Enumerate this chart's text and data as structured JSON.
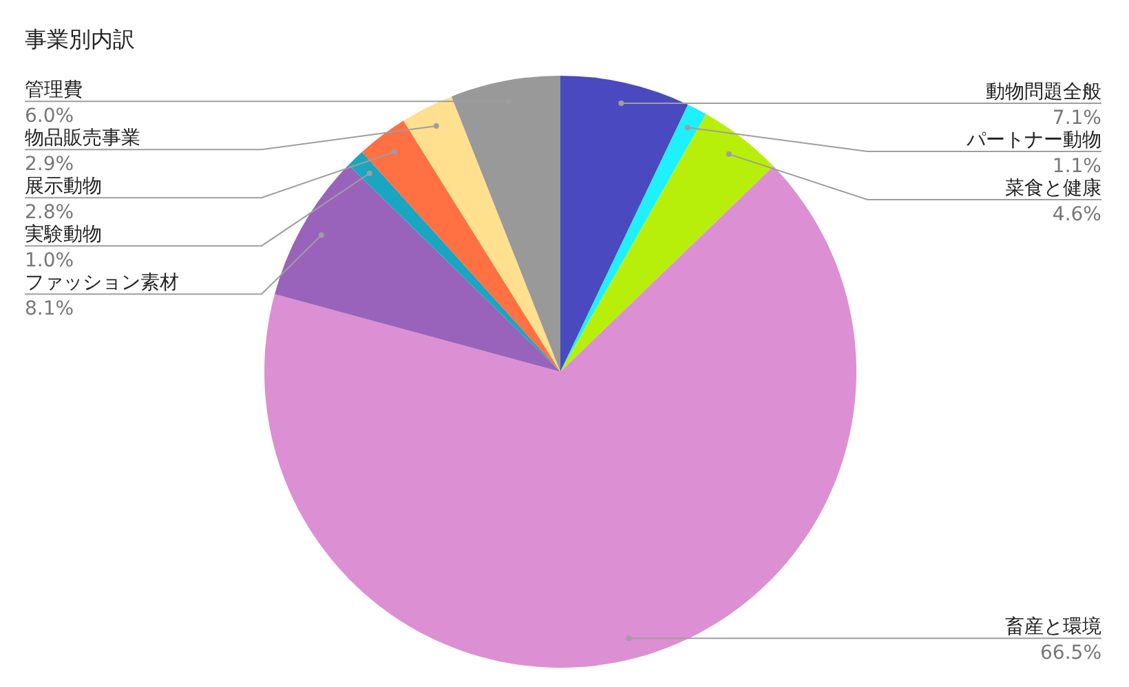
{
  "chart_data": {
    "type": "pie",
    "title": "事業別内訳",
    "categories": [
      "動物問題全般",
      "パートナー動物",
      "菜食と健康",
      "畜産と環境",
      "ファッション素材",
      "実験動物",
      "展示動物",
      "物品販売事業",
      "管理費"
    ],
    "values": [
      7.1,
      1.1,
      4.6,
      66.5,
      8.1,
      1.0,
      2.8,
      2.9,
      6.0
    ],
    "value_labels": [
      "7.1%",
      "1.1%",
      "4.6%",
      "66.5%",
      "8.1%",
      "1.0%",
      "2.8%",
      "2.9%",
      "6.0%"
    ],
    "colors": [
      "#4a49c0",
      "#1ff0ff",
      "#b8ef0a",
      "#dc8fd2",
      "#9963bb",
      "#1aa5c0",
      "#ff7043",
      "#ffe08f",
      "#999999"
    ]
  }
}
